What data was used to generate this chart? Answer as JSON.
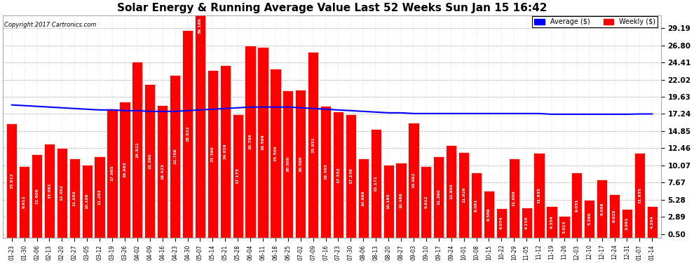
{
  "title": "Solar Energy & Running Average Value Last 52 Weeks Sun Jan 15 16:42",
  "copyright": "Copyright 2017 Cartronics.com",
  "legend_avg": "Average ($)",
  "legend_weekly": "Weekly ($)",
  "yticks": [
    0.5,
    2.89,
    5.28,
    7.67,
    10.07,
    12.46,
    14.85,
    17.24,
    19.63,
    22.02,
    24.41,
    26.8,
    29.19
  ],
  "bar_color": "#ff0000",
  "bar_edge_color": "#ffffff",
  "avg_line_color": "#0000ff",
  "bg_color": "#ffffff",
  "grid_color": "#aaaaaa",
  "labels": [
    "01-23",
    "01-30",
    "02-06",
    "02-13",
    "02-20",
    "02-27",
    "03-05",
    "03-12",
    "03-19",
    "03-26",
    "04-02",
    "04-09",
    "04-16",
    "04-23",
    "04-30",
    "05-07",
    "05-14",
    "05-21",
    "05-28",
    "06-04",
    "06-11",
    "06-18",
    "06-25",
    "07-02",
    "07-09",
    "07-16",
    "07-23",
    "07-30",
    "08-06",
    "08-13",
    "08-20",
    "08-27",
    "09-03",
    "09-10",
    "09-17",
    "09-24",
    "10-01",
    "10-08",
    "10-15",
    "10-22",
    "10-29",
    "11-05",
    "11-12",
    "11-19",
    "11-26",
    "12-03",
    "12-10",
    "12-17",
    "12-24",
    "12-31",
    "01-07",
    "01-14"
  ],
  "values": [
    15.912,
    9.912,
    11.606,
    13.081,
    12.492,
    11.05,
    10.108,
    11.293,
    17.965,
    18.965,
    24.522,
    21.39,
    18.423,
    22.706,
    28.922,
    59.166,
    23.396,
    24.019,
    17.173,
    26.796,
    26.569,
    23.5,
    20.5,
    20.58,
    25.851,
    18.365,
    17.552,
    17.236,
    10.986,
    15.171,
    10.165,
    10.486,
    15.992,
    9.922,
    11.36,
    12.9,
    11.926,
    9.081,
    6.569,
    4.074,
    11.0,
    4.21,
    11.835,
    4.354,
    3.023,
    9.031,
    5.26,
    8.069,
    6.025,
    3.981,
    11.835,
    4.354
  ],
  "avg_values": [
    18.5,
    18.4,
    18.3,
    18.2,
    18.1,
    18.0,
    17.9,
    17.8,
    17.8,
    17.7,
    17.7,
    17.6,
    17.6,
    17.6,
    17.7,
    17.8,
    17.9,
    18.0,
    18.1,
    18.2,
    18.2,
    18.2,
    18.2,
    18.1,
    18.0,
    17.9,
    17.8,
    17.7,
    17.6,
    17.5,
    17.4,
    17.4,
    17.3,
    17.3,
    17.3,
    17.3,
    17.3,
    17.3,
    17.3,
    17.3,
    17.3,
    17.3,
    17.3,
    17.2,
    17.2,
    17.2,
    17.2,
    17.2,
    17.2,
    17.2,
    17.24,
    17.24
  ]
}
